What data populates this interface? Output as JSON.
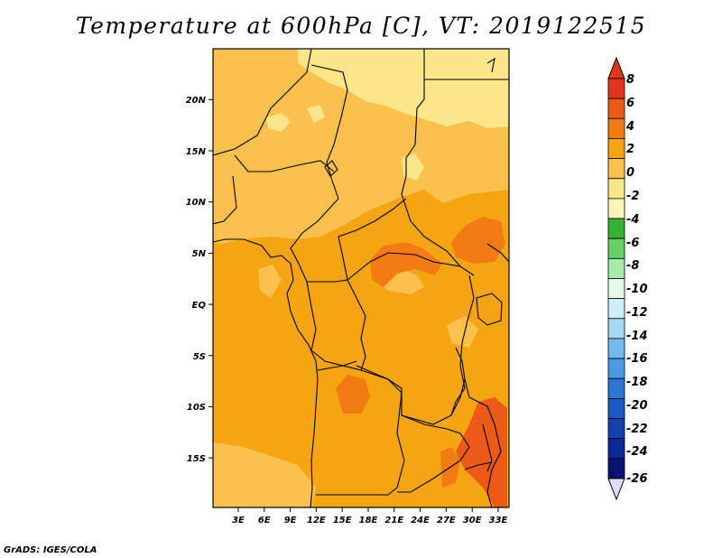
{
  "title": "Temperature at 600hPa [C], VT: 2019122515",
  "footer": "GrADS: IGES/COLA",
  "map": {
    "lat_ticks": [
      "20N",
      "15N",
      "10N",
      "5N",
      "EQ",
      "5S",
      "10S",
      "15S"
    ],
    "lon_ticks": [
      "3E",
      "6E",
      "9E",
      "12E",
      "15E",
      "18E",
      "21E",
      "24E",
      "27E",
      "30E",
      "33E"
    ],
    "field_colors": {
      "pale": "#fde68a",
      "light": "#fbc04e",
      "mid": "#f5a412",
      "warm": "#f27b14",
      "hot": "#ec5a17"
    }
  },
  "colorbar": {
    "labels": [
      "8",
      "6",
      "4",
      "2",
      "0",
      "-2",
      "-4",
      "-6",
      "-8",
      "-10",
      "-12",
      "-14",
      "-16",
      "-18",
      "-20",
      "-22",
      "-24",
      "-26"
    ],
    "colors": [
      "#e0361c",
      "#ec5a17",
      "#f27b14",
      "#f5a412",
      "#fbc04e",
      "#fde68a",
      "#fff5b8",
      "#34b234",
      "#66d066",
      "#a6eaa6",
      "#e6fbe6",
      "#cfeefb",
      "#a6d8f4",
      "#72b9ec",
      "#4a9be4",
      "#2a78d6",
      "#1a58c4",
      "#1440b0",
      "#0b2a94",
      "#0a1470"
    ]
  }
}
